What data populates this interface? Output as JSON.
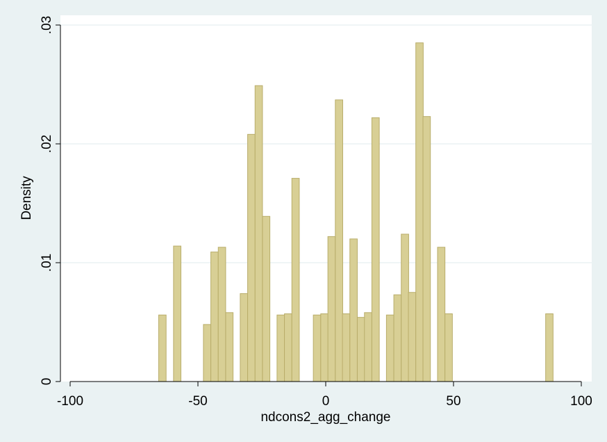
{
  "chart_data": {
    "type": "bar",
    "xlabel": "ndcons2_agg_change",
    "ylabel": "Density",
    "xlim": [
      -100,
      100
    ],
    "ylim": [
      0,
      0.03
    ],
    "x_ticks": [
      "-100",
      "-50",
      "0",
      "50",
      "100"
    ],
    "x_tick_values": [
      -100,
      -50,
      0,
      50,
      100
    ],
    "y_ticks": [
      "0",
      ".01",
      ".02",
      ".03"
    ],
    "y_tick_values": [
      0,
      0.01,
      0.02,
      0.03
    ],
    "grid": "horizontal",
    "bin_width": 2.9,
    "bins": [
      {
        "x": -63.9,
        "y": 0.0056
      },
      {
        "x": -58.1,
        "y": 0.0114
      },
      {
        "x": -46.4,
        "y": 0.0048
      },
      {
        "x": -43.5,
        "y": 0.0109
      },
      {
        "x": -40.6,
        "y": 0.0113
      },
      {
        "x": -37.7,
        "y": 0.0058
      },
      {
        "x": -32.0,
        "y": 0.0074
      },
      {
        "x": -29.1,
        "y": 0.0208
      },
      {
        "x": -26.2,
        "y": 0.0249
      },
      {
        "x": -23.3,
        "y": 0.0139
      },
      {
        "x": -17.6,
        "y": 0.0056
      },
      {
        "x": -14.7,
        "y": 0.0057
      },
      {
        "x": -11.8,
        "y": 0.0171
      },
      {
        "x": -3.4,
        "y": 0.0056
      },
      {
        "x": -0.5,
        "y": 0.0057
      },
      {
        "x": 2.3,
        "y": 0.0122
      },
      {
        "x": 5.2,
        "y": 0.0237
      },
      {
        "x": 8.0,
        "y": 0.0057
      },
      {
        "x": 10.9,
        "y": 0.012
      },
      {
        "x": 13.8,
        "y": 0.0054
      },
      {
        "x": 16.6,
        "y": 0.0058
      },
      {
        "x": 19.5,
        "y": 0.0222
      },
      {
        "x": 25.2,
        "y": 0.0056
      },
      {
        "x": 28.1,
        "y": 0.0073
      },
      {
        "x": 31.0,
        "y": 0.0124
      },
      {
        "x": 33.8,
        "y": 0.0075
      },
      {
        "x": 36.7,
        "y": 0.0285
      },
      {
        "x": 39.5,
        "y": 0.0223
      },
      {
        "x": 45.2,
        "y": 0.0113
      },
      {
        "x": 48.1,
        "y": 0.0057
      },
      {
        "x": 87.5,
        "y": 0.0057
      }
    ],
    "colors": {
      "background": "#eaf2f3",
      "plot_background": "#ffffff",
      "bar_fill": "#d8cf95",
      "bar_stroke": "#b9ad6a",
      "grid": "#eaf2f3",
      "axis": "#000000"
    }
  }
}
